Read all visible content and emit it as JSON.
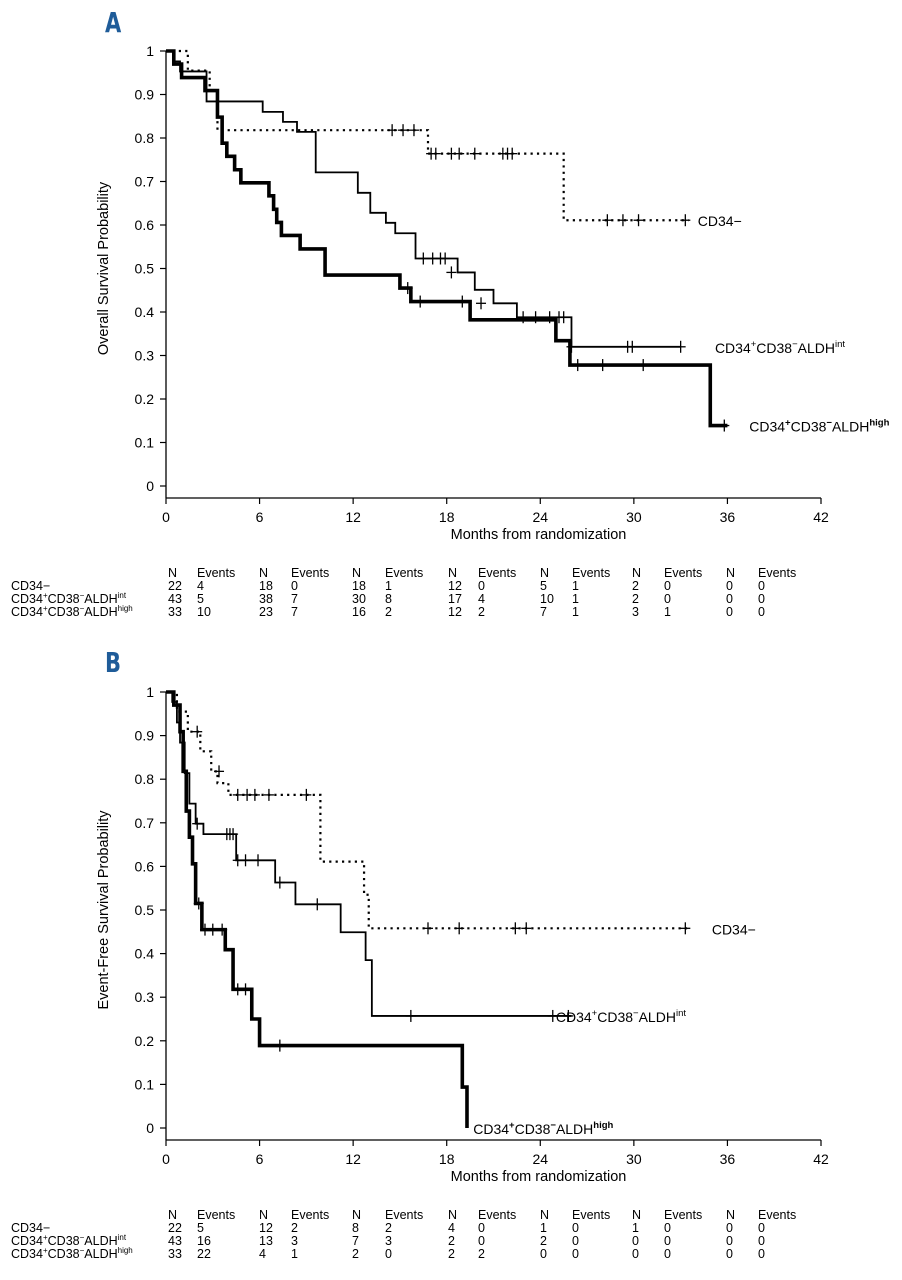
{
  "panels": [
    {
      "letter": "A",
      "chart_data": {
        "type": "line",
        "title": "",
        "xlabel": "Months from randomization",
        "ylabel": "Overall Survival Probability",
        "xlim": [
          0,
          42
        ],
        "ylim": [
          0,
          1
        ],
        "x_ticks": [
          "0",
          "6",
          "12",
          "18",
          "24",
          "30",
          "36",
          "42"
        ],
        "y_ticks": [
          "0",
          "0.1",
          "0.2",
          "0.3",
          "0.4",
          "0.5",
          "0.6",
          "0.7",
          "0.8",
          "0.9",
          "1"
        ],
        "series": [
          {
            "name": "CD34−",
            "label_parts": [
              "CD34−",
              "",
              "",
              "",
              ""
            ],
            "style": "dotted",
            "steps": [
              [
                0,
                1
              ],
              [
                1.4,
                0.955
              ],
              [
                2.8,
                0.909
              ],
              [
                3.3,
                0.818
              ],
              [
                16.8,
                0.764
              ],
              [
                25.5,
                0.611
              ],
              [
                33.5,
                0.611
              ]
            ],
            "censors": [
              [
                14.5,
                0.818
              ],
              [
                15.2,
                0.818
              ],
              [
                15.9,
                0.818
              ],
              [
                17.0,
                0.764
              ],
              [
                17.3,
                0.764
              ],
              [
                18.3,
                0.764
              ],
              [
                18.8,
                0.764
              ],
              [
                19.8,
                0.764
              ],
              [
                21.6,
                0.764
              ],
              [
                21.9,
                0.764
              ],
              [
                22.2,
                0.764
              ],
              [
                28.3,
                0.611
              ],
              [
                29.3,
                0.611
              ],
              [
                30.3,
                0.611
              ],
              [
                33.3,
                0.611
              ]
            ]
          },
          {
            "name": "CD34+CD38−ALDHint",
            "label_parts": [
              "CD34",
              "+",
              "CD38",
              "−",
              "ALDH",
              "int"
            ],
            "style": "thin",
            "steps": [
              [
                0,
                1
              ],
              [
                0.5,
                0.976
              ],
              [
                0.9,
                0.953
              ],
              [
                2.6,
                0.884
              ],
              [
                6.2,
                0.86
              ],
              [
                7.5,
                0.837
              ],
              [
                8.4,
                0.814
              ],
              [
                9.6,
                0.721
              ],
              [
                11.0,
                0.721
              ],
              [
                12.3,
                0.674
              ],
              [
                13.1,
                0.628
              ],
              [
                14.1,
                0.605
              ],
              [
                14.7,
                0.581
              ],
              [
                16.0,
                0.523
              ],
              [
                18.7,
                0.491
              ],
              [
                19.8,
                0.451
              ],
              [
                21.0,
                0.42
              ],
              [
                22.5,
                0.388
              ],
              [
                26.0,
                0.32
              ],
              [
                33.0,
                0.32
              ]
            ],
            "censors": [
              [
                16.5,
                0.523
              ],
              [
                17.1,
                0.523
              ],
              [
                17.6,
                0.523
              ],
              [
                17.9,
                0.523
              ],
              [
                18.3,
                0.491
              ],
              [
                20.2,
                0.42
              ],
              [
                22.9,
                0.388
              ],
              [
                23.7,
                0.388
              ],
              [
                24.6,
                0.388
              ],
              [
                25.2,
                0.388
              ],
              [
                25.5,
                0.388
              ],
              [
                26.0,
                0.32
              ],
              [
                29.6,
                0.32
              ],
              [
                29.9,
                0.32
              ],
              [
                33.0,
                0.32
              ]
            ]
          },
          {
            "name": "CD34+CD38−ALDHhigh",
            "label_parts": [
              "CD34",
              "+",
              "CD38",
              "−",
              "ALDH",
              "high"
            ],
            "style": "thick",
            "steps": [
              [
                0,
                1
              ],
              [
                0.5,
                0.97
              ],
              [
                1.0,
                0.939
              ],
              [
                2.5,
                0.909
              ],
              [
                3.3,
                0.848
              ],
              [
                3.6,
                0.788
              ],
              [
                3.9,
                0.758
              ],
              [
                4.4,
                0.727
              ],
              [
                4.8,
                0.697
              ],
              [
                6.6,
                0.667
              ],
              [
                6.9,
                0.636
              ],
              [
                7.1,
                0.606
              ],
              [
                7.4,
                0.576
              ],
              [
                8.6,
                0.545
              ],
              [
                10.2,
                0.485
              ],
              [
                15.0,
                0.455
              ],
              [
                15.7,
                0.424
              ],
              [
                19.5,
                0.382
              ],
              [
                25.0,
                0.334
              ],
              [
                25.9,
                0.278
              ],
              [
                34.9,
                0.139
              ],
              [
                36.0,
                0.139
              ]
            ],
            "censors": [
              [
                15.5,
                0.455
              ],
              [
                16.3,
                0.424
              ],
              [
                19.0,
                0.424
              ],
              [
                26.4,
                0.278
              ],
              [
                28.0,
                0.278
              ],
              [
                30.6,
                0.278
              ],
              [
                35.8,
                0.139
              ]
            ]
          }
        ]
      },
      "risk_table": {
        "header": [
          "N",
          "Events",
          "N",
          "Events",
          "N",
          "Events",
          "N",
          "Events",
          "N",
          "Events",
          "N",
          "Events",
          "N",
          "Events"
        ],
        "rows": [
          {
            "label_parts": [
              "CD34−",
              "",
              "",
              "",
              ""
            ],
            "cells": [
              "22",
              "4",
              "18",
              "0",
              "18",
              "1",
              "12",
              "0",
              "5",
              "1",
              "2",
              "0",
              "0",
              "0"
            ]
          },
          {
            "label_parts": [
              "CD34",
              "+",
              "CD38",
              "−",
              "ALDH",
              "int"
            ],
            "cells": [
              "43",
              "5",
              "38",
              "7",
              "30",
              "8",
              "17",
              "4",
              "10",
              "1",
              "2",
              "0",
              "0",
              "0"
            ]
          },
          {
            "label_parts": [
              "CD34",
              "+",
              "CD38",
              "−",
              "ALDH",
              "high"
            ],
            "cells": [
              "33",
              "10",
              "23",
              "7",
              "16",
              "2",
              "12",
              "2",
              "7",
              "1",
              "3",
              "1",
              "0",
              "0"
            ]
          }
        ]
      }
    },
    {
      "letter": "B",
      "chart_data": {
        "type": "line",
        "title": "",
        "xlabel": "Months from randomization",
        "ylabel": "Event-Free Survival Probability",
        "xlim": [
          0,
          42
        ],
        "ylim": [
          0,
          1
        ],
        "x_ticks": [
          "0",
          "6",
          "12",
          "18",
          "24",
          "30",
          "36",
          "42"
        ],
        "y_ticks": [
          "0",
          "0.1",
          "0.2",
          "0.3",
          "0.4",
          "0.5",
          "0.6",
          "0.7",
          "0.8",
          "0.9",
          "1"
        ],
        "series": [
          {
            "name": "CD34−",
            "label_parts": [
              "CD34−",
              "",
              "",
              "",
              ""
            ],
            "style": "dotted",
            "steps": [
              [
                0,
                1
              ],
              [
                0.7,
                0.955
              ],
              [
                1.4,
                0.909
              ],
              [
                2.2,
                0.864
              ],
              [
                2.9,
                0.818
              ],
              [
                3.3,
                0.791
              ],
              [
                4.0,
                0.764
              ],
              [
                9.9,
                0.611
              ],
              [
                12.7,
                0.535
              ],
              [
                13.0,
                0.458
              ],
              [
                33.6,
                0.458
              ]
            ],
            "censors": [
              [
                2.0,
                0.909
              ],
              [
                3.4,
                0.818
              ],
              [
                4.6,
                0.764
              ],
              [
                5.2,
                0.764
              ],
              [
                5.7,
                0.764
              ],
              [
                6.6,
                0.764
              ],
              [
                9.0,
                0.764
              ],
              [
                16.8,
                0.458
              ],
              [
                18.8,
                0.458
              ],
              [
                22.4,
                0.458
              ],
              [
                23.1,
                0.458
              ],
              [
                33.3,
                0.458
              ]
            ]
          },
          {
            "name": "CD34+CD38−ALDHint",
            "label_parts": [
              "CD34",
              "+",
              "CD38",
              "−",
              "ALDH",
              "int"
            ],
            "style": "thin",
            "steps": [
              [
                0,
                1
              ],
              [
                0.4,
                0.977
              ],
              [
                0.7,
                0.93
              ],
              [
                0.9,
                0.884
              ],
              [
                1.2,
                0.814
              ],
              [
                1.5,
                0.744
              ],
              [
                1.9,
                0.698
              ],
              [
                2.4,
                0.674
              ],
              [
                4.5,
                0.614
              ],
              [
                7.0,
                0.563
              ],
              [
                8.3,
                0.513
              ],
              [
                11.2,
                0.449
              ],
              [
                12.8,
                0.385
              ],
              [
                13.2,
                0.257
              ],
              [
                26.0,
                0.257
              ]
            ],
            "censors": [
              [
                2.0,
                0.698
              ],
              [
                3.9,
                0.674
              ],
              [
                4.1,
                0.674
              ],
              [
                4.3,
                0.674
              ],
              [
                4.6,
                0.614
              ],
              [
                5.1,
                0.614
              ],
              [
                5.9,
                0.614
              ],
              [
                7.3,
                0.563
              ],
              [
                9.7,
                0.513
              ],
              [
                15.7,
                0.257
              ],
              [
                24.8,
                0.257
              ],
              [
                25.8,
                0.257
              ]
            ]
          },
          {
            "name": "CD34+CD38−ALDHhigh",
            "label_parts": [
              "CD34",
              "+",
              "CD38",
              "−",
              "ALDH",
              "high"
            ],
            "style": "thick",
            "steps": [
              [
                0,
                1
              ],
              [
                0.5,
                0.97
              ],
              [
                0.9,
                0.909
              ],
              [
                1.1,
                0.818
              ],
              [
                1.3,
                0.727
              ],
              [
                1.5,
                0.667
              ],
              [
                1.7,
                0.606
              ],
              [
                1.9,
                0.515
              ],
              [
                2.3,
                0.455
              ],
              [
                3.8,
                0.409
              ],
              [
                4.3,
                0.318
              ],
              [
                5.5,
                0.25
              ],
              [
                6.0,
                0.189
              ],
              [
                19.0,
                0.094
              ],
              [
                19.3,
                0.0
              ]
            ],
            "censors": [
              [
                2.1,
                0.515
              ],
              [
                2.5,
                0.455
              ],
              [
                3.0,
                0.455
              ],
              [
                3.6,
                0.455
              ],
              [
                4.6,
                0.318
              ],
              [
                5.1,
                0.318
              ],
              [
                7.3,
                0.189
              ]
            ]
          }
        ]
      },
      "risk_table": {
        "header": [
          "N",
          "Events",
          "N",
          "Events",
          "N",
          "Events",
          "N",
          "Events",
          "N",
          "Events",
          "N",
          "Events",
          "N",
          "Events"
        ],
        "rows": [
          {
            "label_parts": [
              "CD34−",
              "",
              "",
              "",
              ""
            ],
            "cells": [
              "22",
              "5",
              "12",
              "2",
              "8",
              "2",
              "4",
              "0",
              "1",
              "0",
              "1",
              "0",
              "0",
              "0"
            ]
          },
          {
            "label_parts": [
              "CD34",
              "+",
              "CD38",
              "−",
              "ALDH",
              "int"
            ],
            "cells": [
              "43",
              "16",
              "13",
              "3",
              "7",
              "3",
              "2",
              "0",
              "2",
              "0",
              "0",
              "0",
              "0",
              "0"
            ]
          },
          {
            "label_parts": [
              "CD34",
              "+",
              "CD38",
              "−",
              "ALDH",
              "high"
            ],
            "cells": [
              "33",
              "22",
              "4",
              "1",
              "2",
              "0",
              "2",
              "2",
              "0",
              "0",
              "0",
              "0",
              "0",
              "0"
            ]
          }
        ]
      }
    }
  ]
}
